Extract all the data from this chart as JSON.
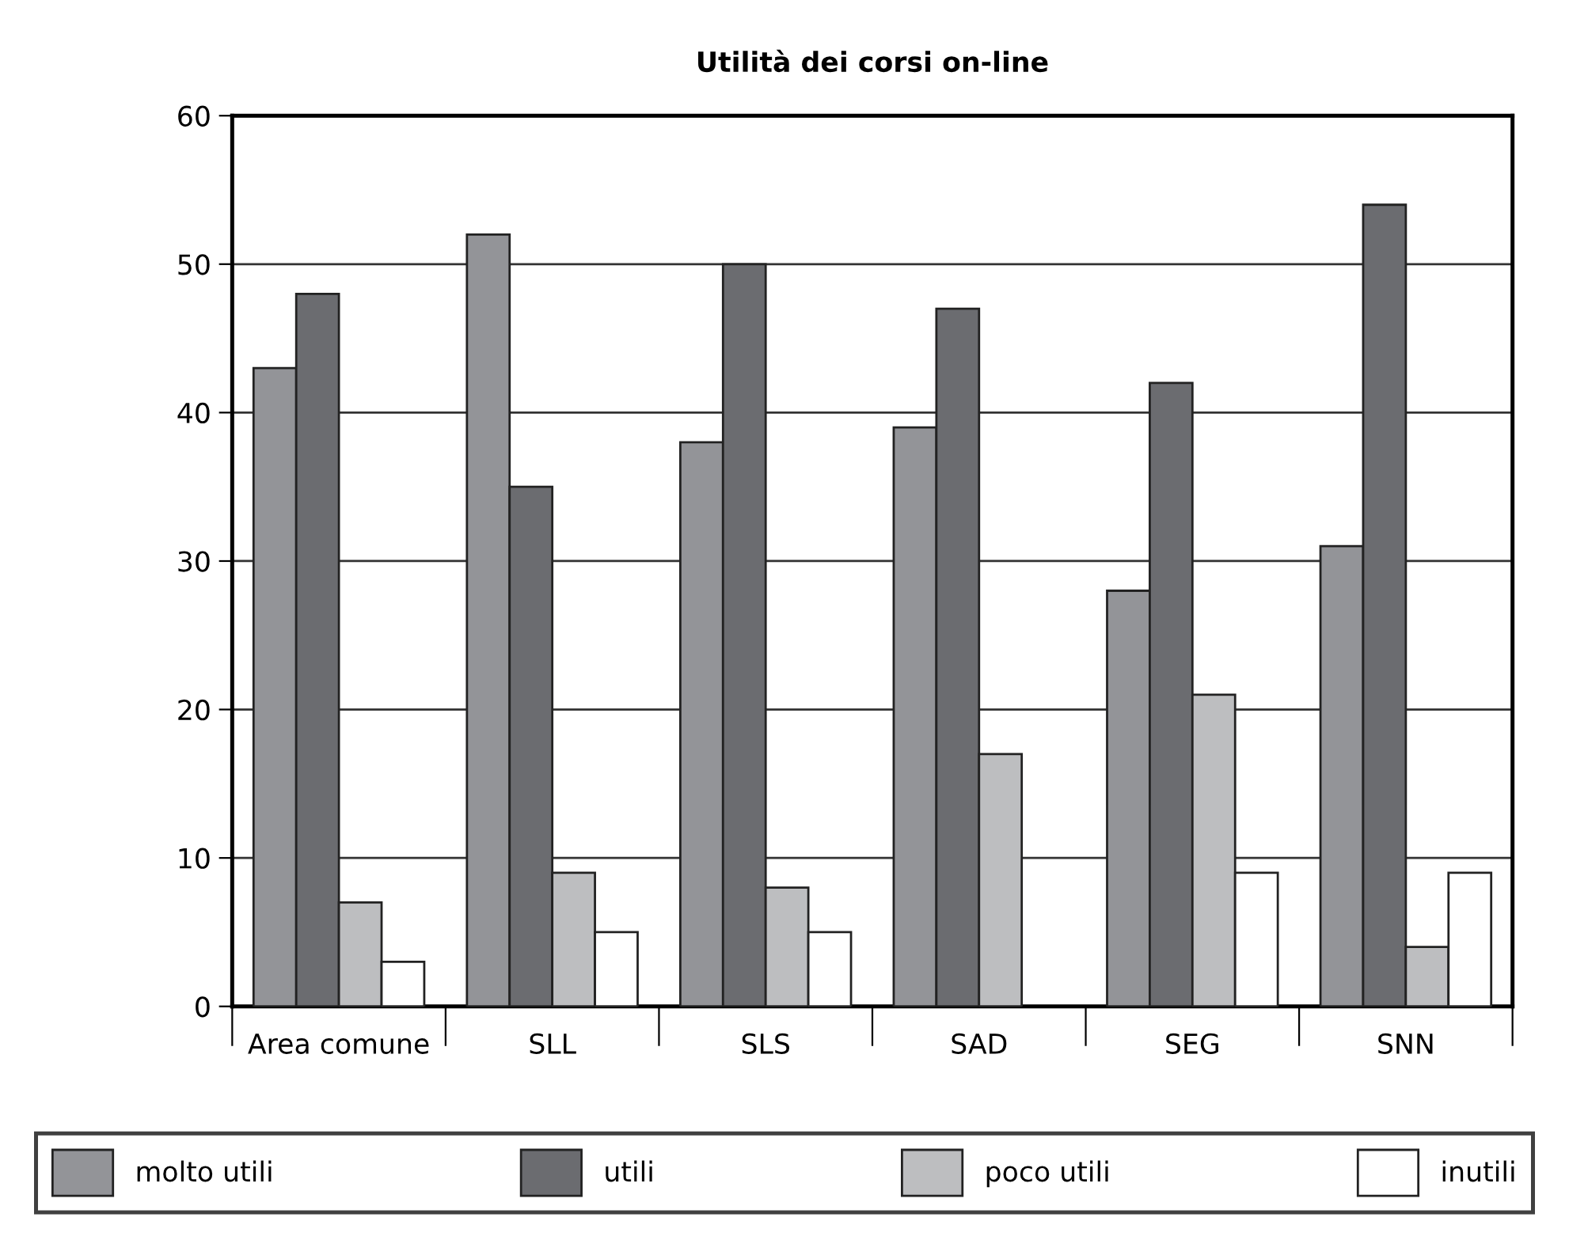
{
  "chart_data": {
    "type": "bar",
    "title": "Utilità dei corsi on-line",
    "categories": [
      "Area comune",
      "SLL",
      "SLS",
      "SAD",
      "SEG",
      "SNN"
    ],
    "series": [
      {
        "name": "molto utili",
        "color": "#939498",
        "values": [
          43,
          52,
          38,
          39,
          28,
          31
        ]
      },
      {
        "name": "utili",
        "color": "#6b6c70",
        "values": [
          48,
          35,
          50,
          47,
          42,
          54
        ]
      },
      {
        "name": "poco utili",
        "color": "#bdbec0",
        "values": [
          7,
          9,
          8,
          17,
          21,
          4
        ]
      },
      {
        "name": "inutili",
        "color": "#ffffff",
        "values": [
          3,
          5,
          5,
          0,
          9,
          9
        ]
      }
    ],
    "ylim": [
      0,
      60
    ],
    "yticks": [
      0,
      10,
      20,
      30,
      40,
      50,
      60
    ],
    "grid": "y",
    "legend": "bottom"
  }
}
